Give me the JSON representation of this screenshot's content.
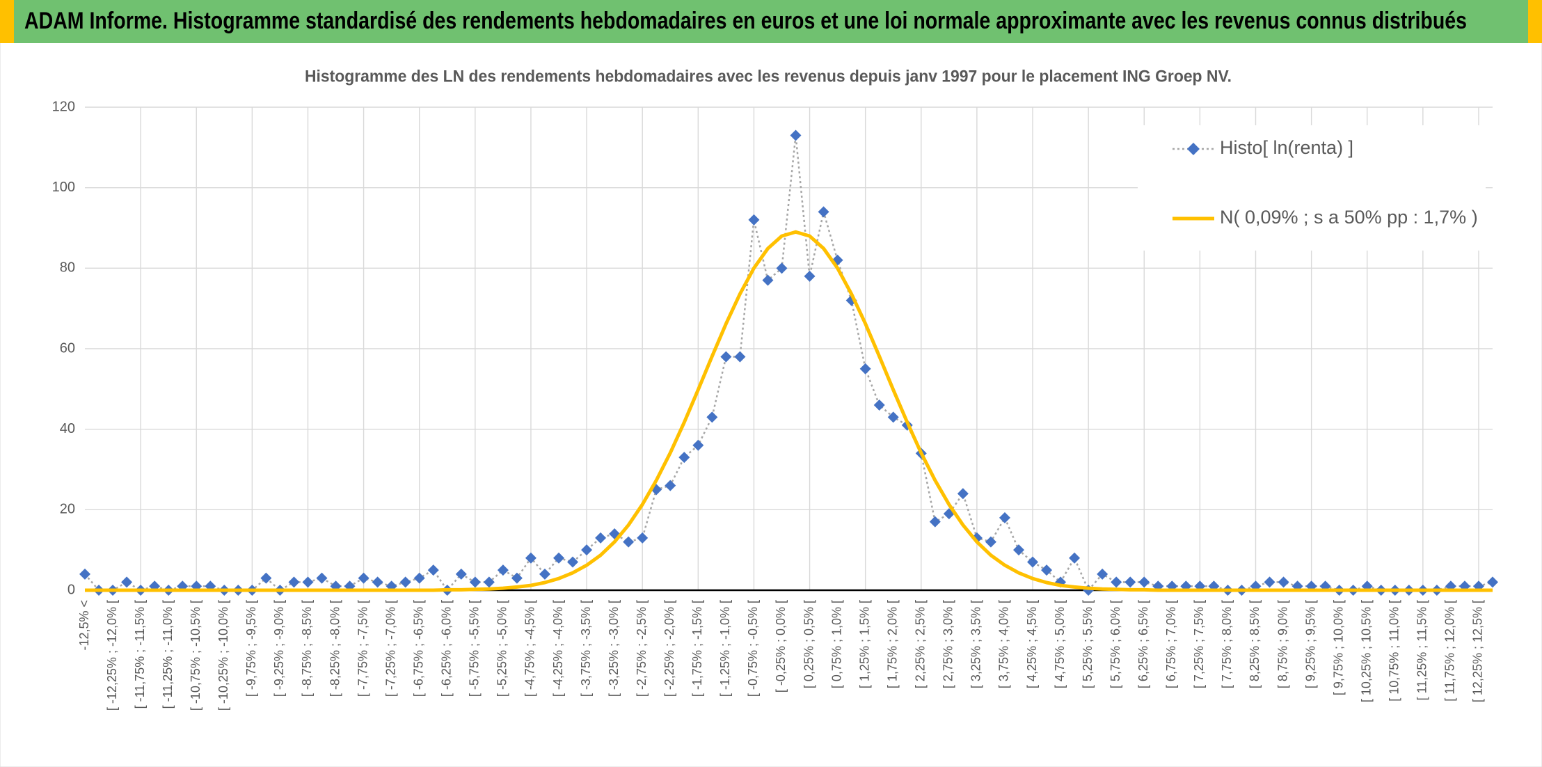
{
  "header": {
    "title": "ADAM Informe. Histogramme standardisé des rendements hebdomadaires en euros et une loi normale approximante avec les revenus connus distribués"
  },
  "chart_data": {
    "type": "line",
    "title": "Histogramme des LN des rendements hebdomadaires avec les revenus depuis janv 1997 pour le placement ING Groep NV.",
    "categories": [
      "-12,5% <",
      null,
      "[ -12,25% ; -12,0% [",
      null,
      "[ -11,75% ; -11,5% [",
      null,
      "[ -11,25% ; -11,0% [",
      null,
      "[ -10,75% ; -10,5% [",
      null,
      "[ -10,25% ; -10,0% [",
      null,
      "[ -9,75% ; -9,5% [",
      null,
      "[ -9,25% ; -9,0% [",
      null,
      "[ -8,75% ; -8,5% [",
      null,
      "[ -8,25% ; -8,0% [",
      null,
      "[ -7,75% ; -7,5% [",
      null,
      "[ -7,25% ; -7,0% [",
      null,
      "[ -6,75% ; -6,5% [",
      null,
      "[ -6,25% ; -6,0% [",
      null,
      "[ -5,75% ; -5,5% [",
      null,
      "[ -5,25% ; -5,0% [",
      null,
      "[ -4,75% ; -4,5% [",
      null,
      "[ -4,25% ; -4,0% [",
      null,
      "[ -3,75% ; -3,5% [",
      null,
      "[ -3,25% ; -3,0% [",
      null,
      "[ -2,75% ; -2,5% [",
      null,
      "[ -2,25% ; -2,0% [",
      null,
      "[ -1,75% ; -1,5% [",
      null,
      "[ -1,25% ; -1,0% [",
      null,
      "[ -0,75% ; -0,5% [",
      null,
      "[ -0,25% ; 0,0% [",
      null,
      "[ 0,25% ; 0,5% [",
      null,
      "[ 0,75% ; 1,0% [",
      null,
      "[ 1,25% ; 1,5% [",
      null,
      "[ 1,75% ; 2,0% [",
      null,
      "[ 2,25% ; 2,5% [",
      null,
      "[ 2,75% ; 3,0% [",
      null,
      "[ 3,25% ; 3,5% [",
      null,
      "[ 3,75% ; 4,0% [",
      null,
      "[ 4,25% ; 4,5% [",
      null,
      "[ 4,75% ; 5,0% [",
      null,
      "[ 5,25% ; 5,5% [",
      null,
      "[ 5,75% ; 6,0% [",
      null,
      "[ 6,25% ; 6,5% [",
      null,
      "[ 6,75% ; 7,0% [",
      null,
      "[ 7,25% ; 7,5% [",
      null,
      "[ 7,75% ; 8,0% [",
      null,
      "[ 8,25% ; 8,5% [",
      null,
      "[ 8,75% ; 9,0% [",
      null,
      "[ 9,25% ; 9,5% [",
      null,
      "[ 9,75% ; 10,0% [",
      null,
      "[ 10,25% ; 10,5% [",
      null,
      "[ 10,75% ; 11,0% [",
      null,
      "[ 11,25% ; 11,5% [",
      null,
      "[ 11,75% ; 12,0% [",
      null,
      "[ 12,25% ; 12,5% [",
      null
    ],
    "series": [
      {
        "name": "Histo[ ln(renta) ]",
        "color": "#4472c4",
        "line_color": "#a6a6a6",
        "marker": "diamond",
        "values": [
          4,
          0,
          0,
          2,
          0,
          1,
          0,
          1,
          1,
          1,
          0,
          0,
          0,
          3,
          0,
          2,
          2,
          3,
          1,
          1,
          3,
          2,
          1,
          2,
          3,
          5,
          0,
          4,
          2,
          2,
          5,
          3,
          8,
          4,
          8,
          7,
          10,
          13,
          14,
          12,
          13,
          25,
          26,
          33,
          36,
          43,
          58,
          58,
          92,
          77,
          80,
          113,
          78,
          94,
          82,
          72,
          55,
          46,
          43,
          41,
          34,
          17,
          19,
          24,
          13,
          12,
          18,
          10,
          7,
          5,
          2,
          8,
          0,
          4,
          2,
          2,
          2,
          1,
          1,
          1,
          1,
          1,
          0,
          0,
          1,
          2,
          2,
          1,
          1,
          1,
          0,
          0,
          1,
          0,
          0,
          0,
          0,
          0,
          1,
          1,
          1,
          2
        ]
      },
      {
        "name": "N( 0,09% ; s a 50% pp : 1,7% )",
        "color": "#ffc000",
        "marker": "none",
        "values": [
          0,
          0,
          0,
          0,
          0,
          0,
          0,
          0,
          0,
          0,
          0,
          0,
          0,
          0,
          0,
          0,
          0,
          0,
          0,
          0,
          0,
          0,
          0,
          0,
          0,
          0,
          0.1,
          0.1,
          0.2,
          0.3,
          0.5,
          0.8,
          1.2,
          1.9,
          2.9,
          4.3,
          6.2,
          8.7,
          12.0,
          16.2,
          21.3,
          27.3,
          34.1,
          41.7,
          49.8,
          58.1,
          66.2,
          73.6,
          80.0,
          84.9,
          88.0,
          89,
          88.0,
          84.9,
          80.0,
          73.6,
          66.2,
          58.1,
          49.8,
          41.7,
          34.1,
          27.3,
          21.3,
          16.2,
          12.0,
          8.7,
          6.2,
          4.3,
          2.9,
          1.9,
          1.2,
          0.8,
          0.5,
          0.3,
          0.2,
          0.1,
          0.1,
          0,
          0,
          0,
          0,
          0,
          0,
          0,
          0,
          0,
          0,
          0,
          0,
          0,
          0,
          0,
          0,
          0,
          0,
          0,
          0,
          0,
          0,
          0,
          0,
          0
        ]
      }
    ],
    "ylim": [
      0,
      120
    ],
    "yticks": [
      0,
      20,
      40,
      60,
      80,
      100,
      120
    ],
    "grid": true,
    "legend": "upper right"
  }
}
